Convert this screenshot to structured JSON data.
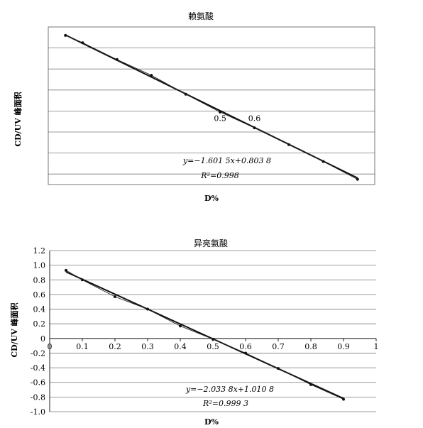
{
  "chart_data": [
    {
      "type": "line",
      "title": "赖氨酸",
      "xlabel": "D%",
      "ylabel": "CD/UV 峰面积",
      "x_tick_labels": [
        "0.5",
        "0.6"
      ],
      "x": [
        0.05,
        0.1,
        0.2,
        0.3,
        0.4,
        0.5,
        0.6,
        0.7,
        0.8,
        0.9
      ],
      "series": [
        {
          "values": [
            0.72,
            0.65,
            0.49,
            0.34,
            0.16,
            -0.01,
            -0.16,
            -0.32,
            -0.48,
            -0.65
          ]
        }
      ],
      "trendline": {
        "slope": -1.6015,
        "intercept": 0.8038
      },
      "equation": "y=−1.601 5x+0.803 8",
      "r_squared": "R²=0.998",
      "xlim": [
        0,
        0.95
      ],
      "ylim": [
        -0.7,
        0.8
      ],
      "grid": true,
      "y_tick_labels_shown": false
    },
    {
      "type": "line",
      "title": "异亮氨酸",
      "xlabel": "D%",
      "ylabel": "CD/UV 峰面积",
      "x": [
        0.05,
        0.1,
        0.2,
        0.3,
        0.4,
        0.5,
        0.6,
        0.7,
        0.8,
        0.9
      ],
      "series": [
        {
          "values": [
            0.93,
            0.8,
            0.57,
            0.4,
            0.17,
            -0.01,
            -0.2,
            -0.41,
            -0.63,
            -0.83
          ]
        }
      ],
      "trendline": {
        "slope": -2.0338,
        "intercept": 1.0108
      },
      "equation": "y=−2.033 8x+1.010 8",
      "r_squared": "R²=0.999 3",
      "x_ticks": [
        0,
        0.1,
        0.2,
        0.3,
        0.4,
        0.5,
        0.6,
        0.7,
        0.8,
        0.9,
        1
      ],
      "x_tick_labels": [
        "0",
        "0.1",
        "0.2",
        "0.3",
        "0.4",
        "0.5",
        "0.6",
        "0.7",
        "0.8",
        "0.9",
        "1"
      ],
      "y_ticks": [
        1.2,
        1.0,
        0.8,
        0.6,
        0.4,
        0.2,
        0,
        -0.2,
        -0.4,
        -0.6,
        -0.8,
        -1.0
      ],
      "y_tick_labels": [
        "1.2",
        "1.0",
        "0.8",
        "0.6",
        "0.4",
        "0.2",
        "0",
        "-0.2",
        "-0.4",
        "-0.6",
        "-0.8",
        "-1.0"
      ],
      "xlim": [
        0,
        1
      ],
      "ylim": [
        -1.0,
        1.2
      ],
      "grid": true
    }
  ]
}
